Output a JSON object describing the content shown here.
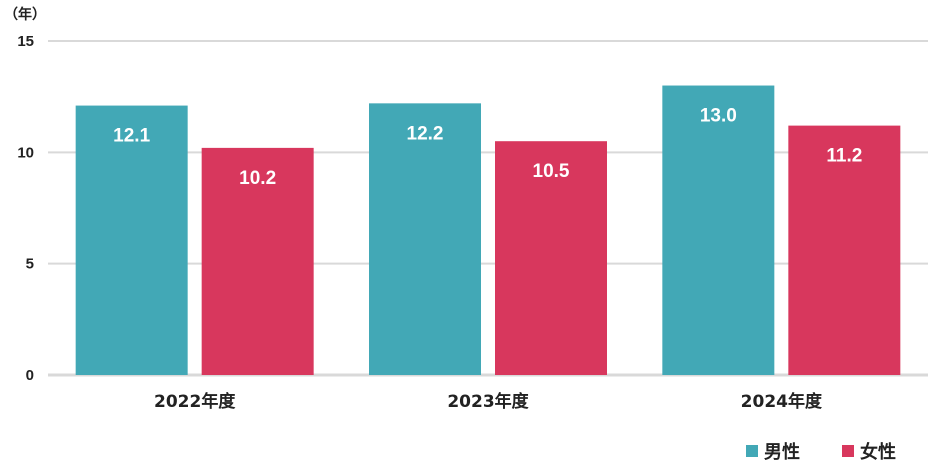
{
  "chart_data": {
    "type": "bar",
    "unit_label": "（年）",
    "categories": [
      "2022年度",
      "2023年度",
      "2024年度"
    ],
    "series": [
      {
        "name": "男性",
        "values": [
          12.1,
          12.2,
          13.0
        ],
        "labels": [
          "12.1",
          "12.2",
          "13.0"
        ],
        "color": "#42a8b6"
      },
      {
        "name": "女性",
        "values": [
          10.2,
          10.5,
          11.2
        ],
        "labels": [
          "10.2",
          "10.5",
          "11.2"
        ],
        "color": "#d8375d"
      }
    ],
    "ylim": [
      0,
      15
    ],
    "yticks": [
      0,
      5,
      10,
      15
    ],
    "grid": true,
    "gridline_color": "#d9d9d9",
    "legend_position": "bottom-right"
  }
}
